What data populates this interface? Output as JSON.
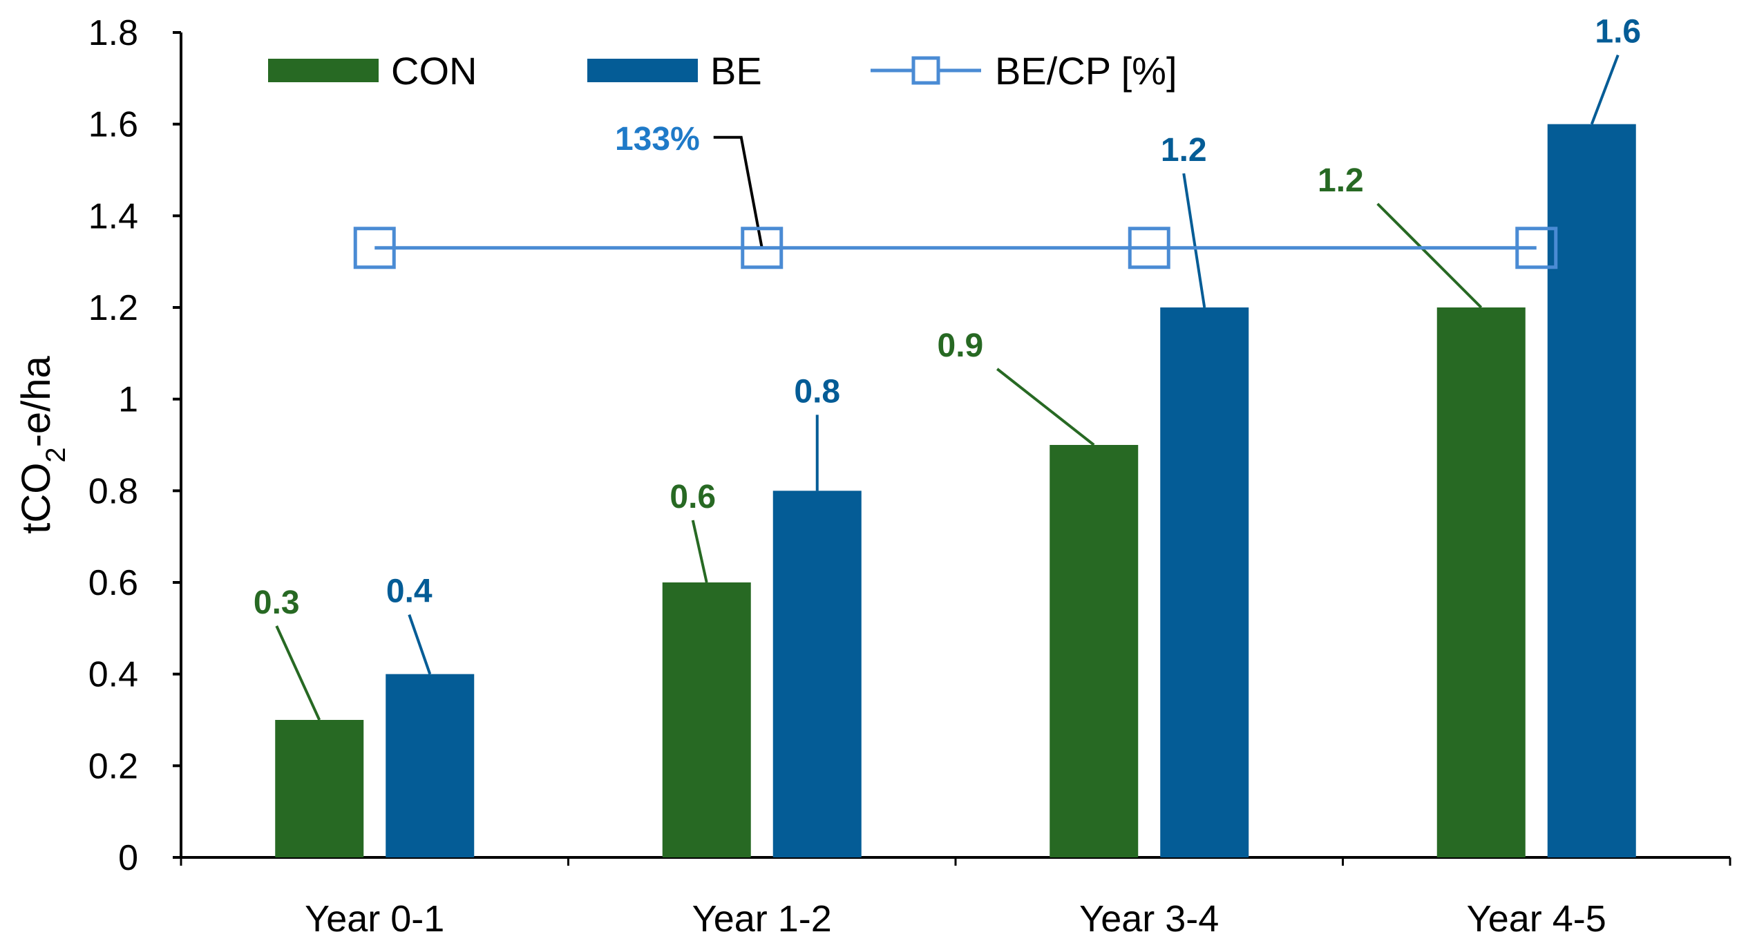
{
  "chart_data": {
    "type": "bar",
    "title": "",
    "xlabel": "",
    "ylabel": {
      "prefix": "tCO",
      "subscript": "2",
      "suffix": "-e/ha"
    },
    "ylim": [
      0,
      1.8
    ],
    "ytick_step": 0.2,
    "yticks": [
      "0",
      "0.2",
      "0.4",
      "0.6",
      "0.8",
      "1",
      "1.2",
      "1.4",
      "1.6",
      "1.8"
    ],
    "categories": [
      "Year 0-1",
      "Year 1-2",
      "Year 3-4",
      "Year 4-5"
    ],
    "series": [
      {
        "name": "CON",
        "kind": "bar",
        "color": "#276923",
        "values": [
          0.3,
          0.6,
          0.9,
          1.2
        ],
        "labels": [
          "0.3",
          "0.6",
          "0.9",
          "1.2"
        ]
      },
      {
        "name": "BE",
        "kind": "bar",
        "color": "#045C96",
        "values": [
          0.4,
          0.8,
          1.2,
          1.6
        ],
        "labels": [
          "0.4",
          "0.8",
          "1.2",
          "1.6"
        ]
      },
      {
        "name": "BE/CP [%]",
        "kind": "line",
        "color": "#4A8BD4",
        "values": [
          133,
          133,
          133,
          133
        ],
        "display_scale": 0.01,
        "annotation": "133%",
        "annotation_color": "#1F7AC8"
      }
    ],
    "legend": {
      "position": "top",
      "entries": [
        "CON",
        "BE",
        "BE/CP [%]"
      ]
    },
    "grid": false
  }
}
